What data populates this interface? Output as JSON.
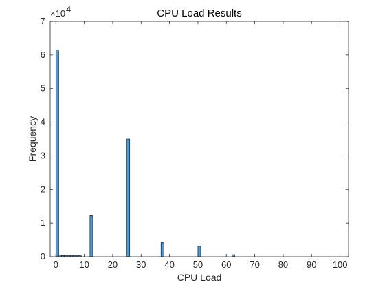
{
  "chart_data": {
    "type": "bar",
    "title": "CPU Load Results",
    "xlabel": "CPU Load",
    "ylabel": "Frequency",
    "xlim": [
      -2,
      103
    ],
    "ylim": [
      0,
      70000
    ],
    "xticks": [
      0,
      10,
      20,
      30,
      40,
      50,
      60,
      70,
      80,
      90,
      100
    ],
    "xtick_labels": [
      "0",
      "10",
      "20",
      "30",
      "40",
      "50",
      "60",
      "70",
      "80",
      "90",
      "100"
    ],
    "yticks": [
      0,
      10000,
      20000,
      30000,
      40000,
      50000,
      60000,
      70000
    ],
    "ytick_labels": [
      "0",
      "1",
      "2",
      "3",
      "4",
      "5",
      "6",
      "7"
    ],
    "y_exponent_label": "×10",
    "y_exponent_power": "4",
    "bin_width": 1,
    "bars": [
      {
        "x": 0.5,
        "value": 61500
      },
      {
        "x": 1.5,
        "value": 500
      },
      {
        "x": 2.5,
        "value": 350
      },
      {
        "x": 3.5,
        "value": 300
      },
      {
        "x": 4.5,
        "value": 300
      },
      {
        "x": 5.5,
        "value": 300
      },
      {
        "x": 6.5,
        "value": 300
      },
      {
        "x": 7.5,
        "value": 300
      },
      {
        "x": 8.5,
        "value": 300
      },
      {
        "x": 12.5,
        "value": 12200
      },
      {
        "x": 25.5,
        "value": 35000
      },
      {
        "x": 37.5,
        "value": 4200
      },
      {
        "x": 50.5,
        "value": 3100
      },
      {
        "x": 62.5,
        "value": 600
      }
    ],
    "grid": false,
    "legend": "none",
    "colors": {
      "bar_fill": "#4d9bd6",
      "bar_edge": "#000000",
      "axis": "#262626"
    }
  }
}
